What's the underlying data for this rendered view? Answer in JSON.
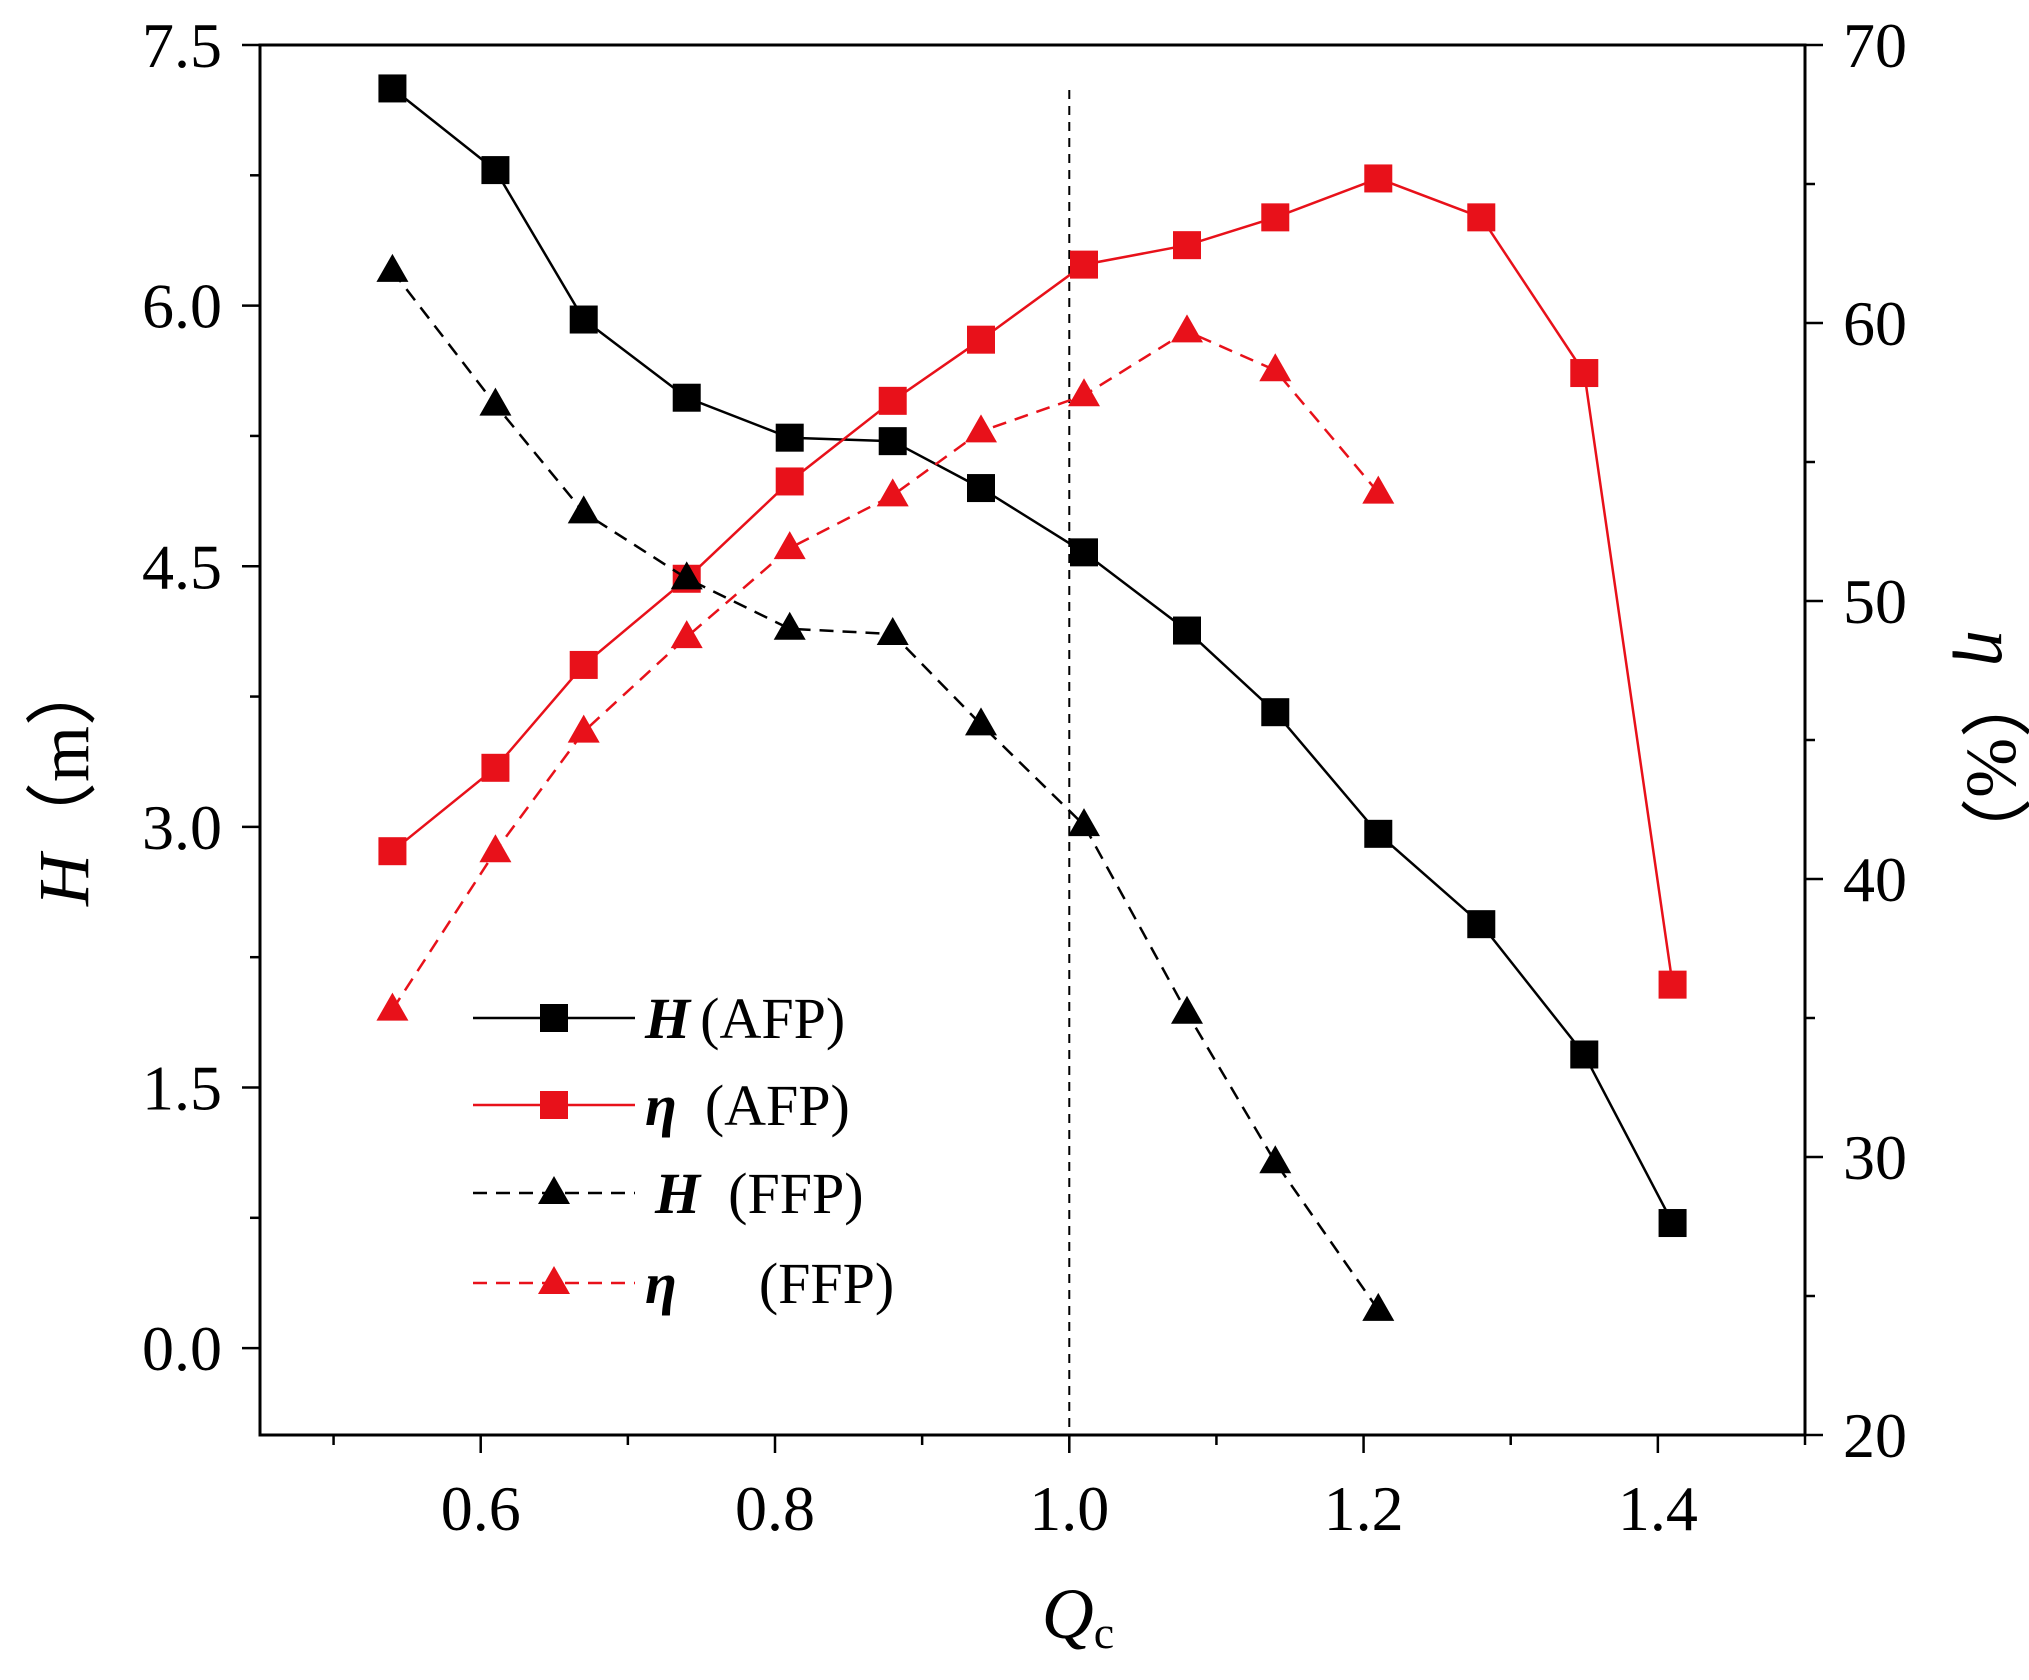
{
  "chart_data": {
    "type": "line",
    "xlabel": {
      "main": "Q",
      "sub": "c"
    },
    "ylabel_left": {
      "symbol": "H",
      "unit": "（m）"
    },
    "ylabel_right": {
      "symbol": "η",
      "unit": "（%）"
    },
    "xlim": [
      0.45,
      1.5
    ],
    "ylim_left": [
      -0.5,
      7.5
    ],
    "ylim_right": [
      20,
      70
    ],
    "x_ticks": [
      0.6,
      0.8,
      1.0,
      1.2,
      1.4
    ],
    "x_tick_labels": [
      "0.6",
      "0.8",
      "1.0",
      "1.2",
      "1.4"
    ],
    "y_left_ticks": [
      0.0,
      1.5,
      3.0,
      4.5,
      6.0,
      7.5
    ],
    "y_left_tick_labels": [
      "0.0",
      "1.5",
      "3.0",
      "4.5",
      "6.0",
      "7.5"
    ],
    "y_right_ticks": [
      20,
      30,
      40,
      50,
      60,
      70
    ],
    "y_right_tick_labels": [
      "20",
      "30",
      "40",
      "50",
      "60",
      "70"
    ],
    "reference_line_x": 1.0,
    "series": [
      {
        "id": "H_AFP",
        "axis": "left",
        "color": "#000000",
        "marker": "square",
        "dashed": false,
        "x": [
          0.54,
          0.61,
          0.67,
          0.74,
          0.81,
          0.88,
          0.94,
          1.01,
          1.08,
          1.14,
          1.21,
          1.28,
          1.35,
          1.41
        ],
        "values": [
          7.25,
          6.78,
          5.92,
          5.47,
          5.24,
          5.22,
          4.95,
          4.58,
          4.13,
          3.66,
          2.96,
          2.44,
          1.69,
          0.72
        ]
      },
      {
        "id": "eta_AFP",
        "axis": "right",
        "color": "#e8111a",
        "marker": "square",
        "dashed": false,
        "x": [
          0.54,
          0.61,
          0.67,
          0.74,
          0.81,
          0.88,
          0.94,
          1.01,
          1.08,
          1.14,
          1.21,
          1.28,
          1.35,
          1.41
        ],
        "values": [
          41.0,
          44.0,
          47.7,
          50.8,
          54.3,
          57.2,
          59.4,
          62.1,
          62.8,
          63.8,
          65.2,
          63.8,
          58.2,
          36.2
        ]
      },
      {
        "id": "H_FFP",
        "axis": "left",
        "color": "#000000",
        "marker": "triangle",
        "dashed": true,
        "x": [
          0.54,
          0.61,
          0.67,
          0.74,
          0.81,
          0.88,
          0.94,
          1.01,
          1.08,
          1.14,
          1.21
        ],
        "values": [
          6.2,
          5.43,
          4.81,
          4.43,
          4.14,
          4.11,
          3.59,
          3.01,
          1.93,
          1.07,
          0.22
        ]
      },
      {
        "id": "eta_FFP",
        "axis": "right",
        "color": "#e8111a",
        "marker": "triangle",
        "dashed": true,
        "x": [
          0.54,
          0.61,
          0.67,
          0.74,
          0.81,
          0.88,
          0.94,
          1.01,
          1.08,
          1.14,
          1.21
        ],
        "values": [
          35.3,
          41.0,
          45.3,
          48.7,
          51.9,
          53.8,
          56.1,
          57.4,
          59.7,
          58.3,
          53.9
        ]
      }
    ],
    "legend": {
      "placement": "bottom-left",
      "entries": [
        {
          "series": "H_AFP",
          "symbol": "H",
          "text": "(AFP)"
        },
        {
          "series": "eta_AFP",
          "symbol": "η",
          "text": "(AFP)"
        },
        {
          "series": "H_FFP",
          "symbol": "H",
          "text": "(FFP)"
        },
        {
          "series": "eta_FFP",
          "symbol": "η",
          "text": "(FFP)"
        }
      ]
    }
  }
}
